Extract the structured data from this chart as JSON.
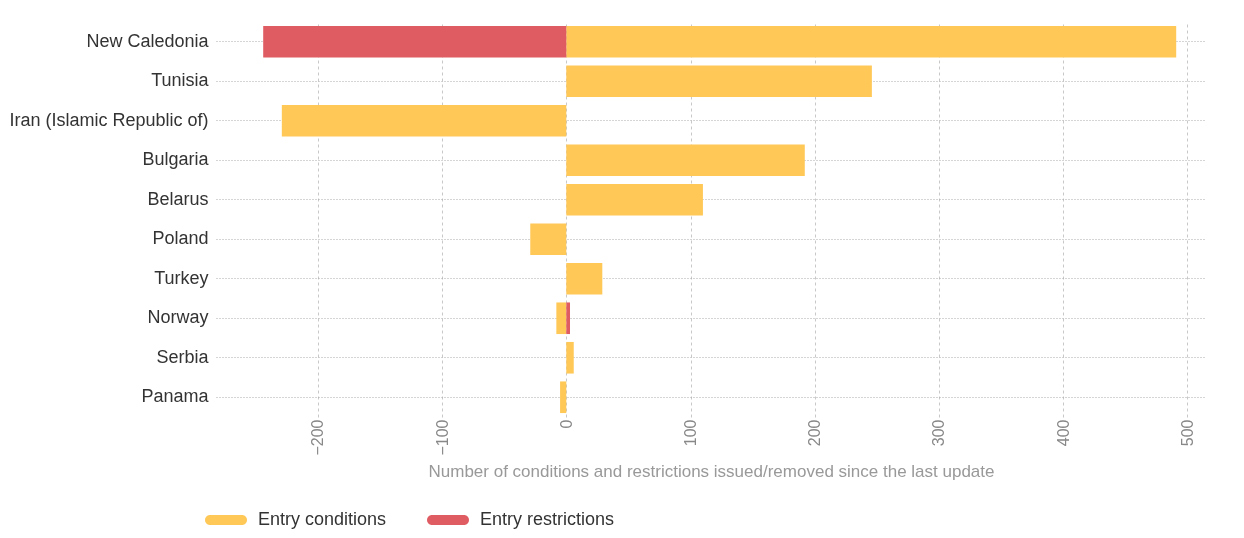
{
  "chart_data": {
    "type": "bar",
    "orientation": "horizontal",
    "stacked": true,
    "categories": [
      "New Caledonia",
      "Tunisia",
      "Iran (Islamic Republic of)",
      "Bulgaria",
      "Belarus",
      "Poland",
      "Turkey",
      "Norway",
      "Serbia",
      "Panama"
    ],
    "series": [
      {
        "name": "Entry conditions",
        "color": "#ffc857",
        "values": [
          491,
          246,
          -229,
          192,
          110,
          -29,
          29,
          -8,
          6,
          -5
        ]
      },
      {
        "name": "Entry restrictions",
        "color": "#e05c63",
        "values": [
          -244,
          null,
          null,
          null,
          null,
          null,
          null,
          3,
          null,
          null
        ]
      }
    ],
    "xlabel": "Number of conditions and restrictions issued/removed since the last update",
    "xlim": [
      -282,
      515
    ],
    "xticks": [
      -200,
      -100,
      0,
      100,
      200,
      300,
      400,
      500
    ],
    "grid": true,
    "legend": "bottom"
  }
}
